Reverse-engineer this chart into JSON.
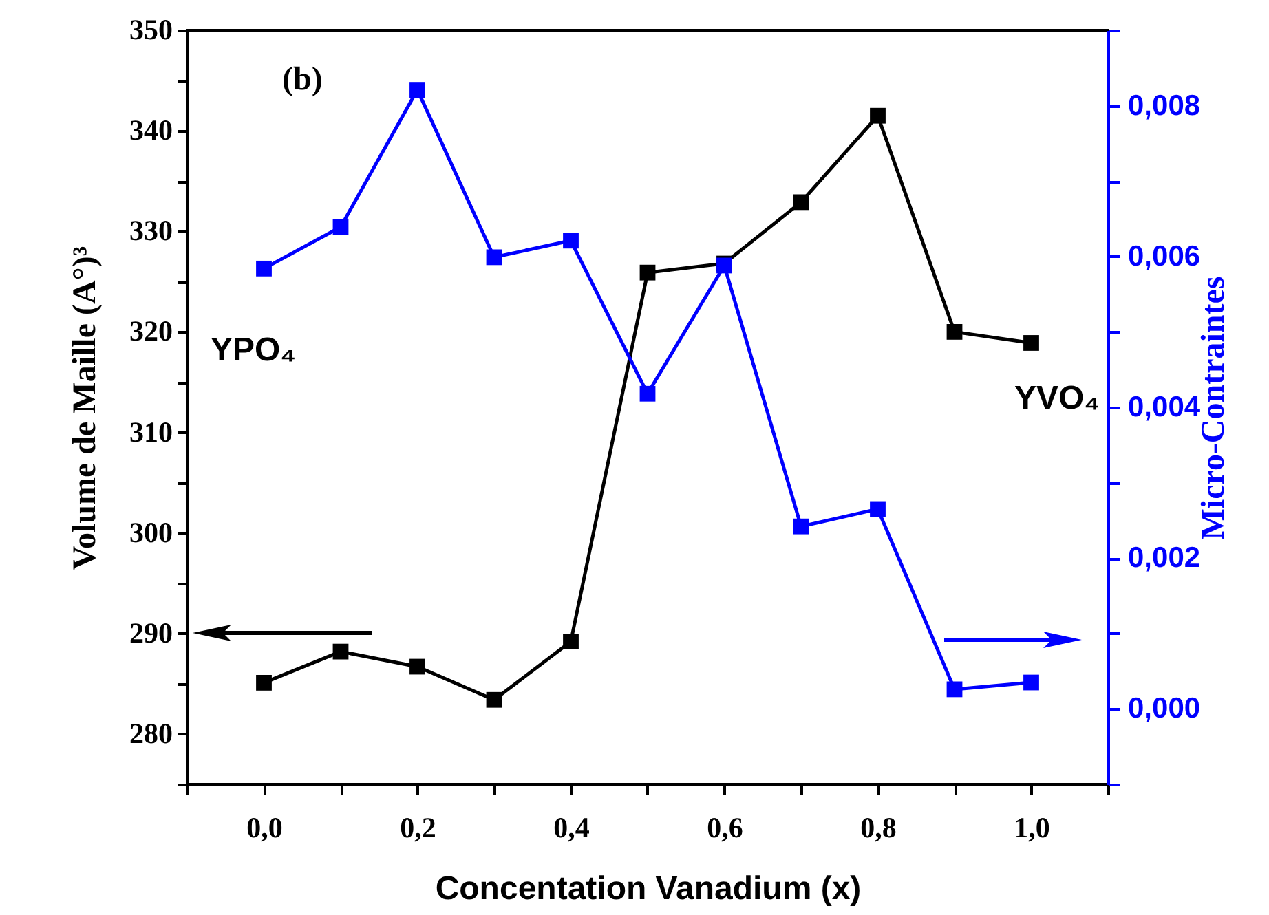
{
  "chart_data": {
    "type": "line",
    "xlabel": "Concentation Vanadium  (x)",
    "ylabel": "Volume de Maille  (A°)³",
    "y2label": "Micro-Contraintes",
    "annotations": [
      "(b)",
      "YPO₄",
      "YVO₄"
    ],
    "x": [
      0,
      0.1,
      0.2,
      0.3,
      0.4,
      0.5,
      0.6,
      0.7,
      0.8,
      0.9,
      1.0
    ],
    "series": [
      {
        "color": "#000000",
        "values": [
          285.1,
          288.2,
          286.7,
          283.4,
          289.2,
          325.9,
          326.8,
          332.9,
          341.5,
          320.0,
          318.9
        ]
      },
      {
        "color": "#0000ff",
        "axis": "y2",
        "values": [
          0.00584,
          0.00639,
          0.00821,
          0.00599,
          0.00621,
          0.00418,
          0.00588,
          0.00242,
          0.00265,
          0.00026,
          0.00035
        ]
      }
    ],
    "xlim": [
      -0.1,
      1.1
    ],
    "xticks": [
      {
        "value": -0.1,
        "label": null
      },
      {
        "value": 0,
        "label": "0,0"
      },
      {
        "value": 0.1,
        "label": null
      },
      {
        "value": 0.2,
        "label": "0,2"
      },
      {
        "value": 0.3,
        "label": null
      },
      {
        "value": 0.4,
        "label": "0,4"
      },
      {
        "value": 0.5,
        "label": null
      },
      {
        "value": 0.6,
        "label": "0,6"
      },
      {
        "value": 0.7,
        "label": null
      },
      {
        "value": 0.8,
        "label": "0,8"
      },
      {
        "value": 0.9,
        "label": null
      },
      {
        "value": 1.0,
        "label": "1,0"
      },
      {
        "value": 1.1,
        "label": null
      }
    ],
    "ylim": [
      275,
      350
    ],
    "yticks": [
      {
        "value": 275,
        "label": null
      },
      280,
      {
        "value": 285,
        "label": null
      },
      290,
      {
        "value": 295,
        "label": null
      },
      300,
      {
        "value": 305,
        "label": null
      },
      310,
      {
        "value": 315,
        "label": null
      },
      320,
      {
        "value": 325,
        "label": null
      },
      330,
      {
        "value": 335,
        "label": null
      },
      340,
      {
        "value": 345,
        "label": null
      },
      350
    ],
    "y2lim": [
      -0.001,
      0.009
    ],
    "y2ticks": [
      {
        "value": -0.001,
        "label": null
      },
      {
        "value": 0,
        "label": "0,000"
      },
      {
        "value": 0.001,
        "label": null
      },
      {
        "value": 0.002,
        "label": "0,002"
      },
      {
        "value": 0.003,
        "label": null
      },
      {
        "value": 0.004,
        "label": "0,004"
      },
      {
        "value": 0.005,
        "label": null
      },
      {
        "value": 0.006,
        "label": "0,006"
      },
      {
        "value": 0.007,
        "label": null
      },
      {
        "value": 0.008,
        "label": "0,008"
      },
      {
        "value": 0.009,
        "label": null
      }
    ],
    "grid": false,
    "marker": "square",
    "line_style": "solid"
  }
}
